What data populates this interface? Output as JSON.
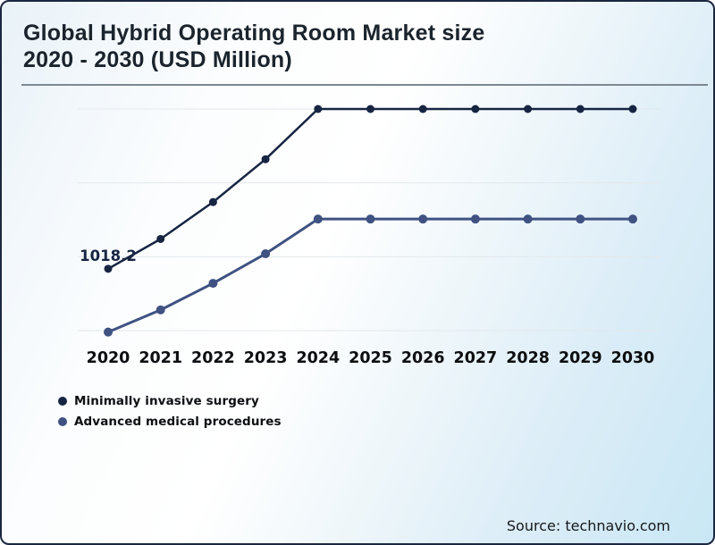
{
  "header": {
    "title_line1": "Global Hybrid Operating Room Market size",
    "title_line2": "2020 - 2030 (USD Million)"
  },
  "source": {
    "label": "Source: technavio.com"
  },
  "colors": {
    "series_dark": "#172543",
    "series_light": "#3f5282",
    "gridline": "#e2e8eb",
    "title_text": "#1b242d",
    "axis_text": "#0c0e10",
    "background_edge": "#c9e7f5",
    "border": "#1b2740"
  },
  "chart_data": {
    "type": "line",
    "title": "Global Hybrid Operating Room Market size 2020 - 2030 (USD Million)",
    "categories": [
      "2020",
      "2021",
      "2022",
      "2023",
      "2024",
      "2025",
      "2026",
      "2027",
      "2028",
      "2029",
      "2030"
    ],
    "series": [
      {
        "name": "Minimally invasive surgery",
        "color": "#172543",
        "values": [
          1018.2,
          1220,
          1470,
          1760,
          2100,
          2100,
          2100,
          2100,
          2100,
          2100,
          2100
        ]
      },
      {
        "name": "Advanced medical procedures",
        "color": "#3f5282",
        "values": [
          590,
          740,
          920,
          1120,
          1355,
          1355,
          1355,
          1355,
          1355,
          1355,
          1355
        ]
      }
    ],
    "data_labels": [
      {
        "series": 0,
        "index": 0,
        "text": "1018.2"
      }
    ],
    "xlabel": "",
    "ylabel": "",
    "ylim": [
      540,
      2160
    ],
    "y_gridlines": [
      600,
      1100,
      1600,
      2100
    ],
    "grid": "horizontal-only",
    "legend_position": "bottom-left",
    "x_axis_labels_visible": true,
    "y_axis_labels_visible": false
  }
}
